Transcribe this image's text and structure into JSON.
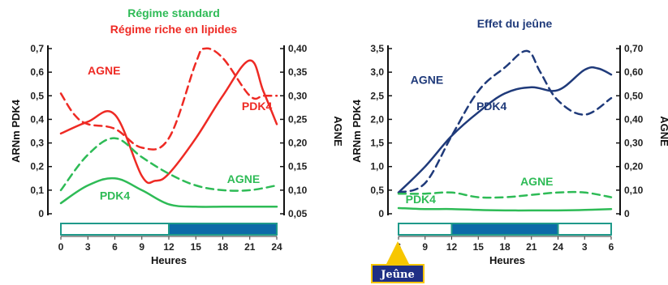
{
  "colors": {
    "green": "#2ebb56",
    "red": "#ee2a24",
    "navy": "#1f3a7a",
    "bar_teal": "#1f9a8a",
    "bar_blue": "#0d6aa8",
    "badge_fill": "#1f2f85",
    "badge_border": "#f7c600",
    "arrow": "#f7c600"
  },
  "chart_data": [
    {
      "type": "line",
      "title_lines": [
        {
          "text": "Régime standard",
          "color": "#2ebb56"
        },
        {
          "text": "Régime riche en lipides",
          "color": "#ee2a24"
        }
      ],
      "xlabel": "Heures",
      "ylabel_left": "ARNm PDK4",
      "ylabel_right": "AGNE",
      "x_ticks": [
        "0",
        "3",
        "6",
        "9",
        "12",
        "15",
        "18",
        "21",
        "24"
      ],
      "y_left_ticks": [
        "0",
        "0,1",
        "0,2",
        "0,3",
        "0,4",
        "0,5",
        "0,6",
        "0,7"
      ],
      "y_left_range": [
        0,
        0.7
      ],
      "y_right_ticks": [
        "0,05",
        "0,10",
        "0,15",
        "0,20",
        "0,25",
        "0,30",
        "0,35",
        "0,40"
      ],
      "y_right_range": [
        0.05,
        0.4
      ],
      "series": [
        {
          "label": "PDK4",
          "axis": "left",
          "style": "solid",
          "color": "#ee2a24",
          "x": [
            0,
            3,
            6,
            9,
            10.5,
            12,
            15,
            18,
            21,
            22.5,
            24
          ],
          "y": [
            0.34,
            0.39,
            0.42,
            0.16,
            0.14,
            0.17,
            0.32,
            0.5,
            0.65,
            0.52,
            0.38
          ]
        },
        {
          "label": "AGNE",
          "axis": "right",
          "style": "dashed",
          "color": "#ee2a24",
          "x": [
            0,
            1.5,
            3,
            6,
            9,
            12,
            15,
            16,
            18,
            21,
            22.5,
            24
          ],
          "y": [
            0.305,
            0.26,
            0.24,
            0.23,
            0.19,
            0.21,
            0.37,
            0.4,
            0.38,
            0.3,
            0.3,
            0.3
          ]
        },
        {
          "label": "AGNE",
          "axis": "right",
          "style": "dashed",
          "color": "#2ebb56",
          "x": [
            0,
            3,
            6,
            9,
            12,
            15,
            18,
            21,
            24
          ],
          "y": [
            0.1,
            0.175,
            0.21,
            0.17,
            0.135,
            0.11,
            0.1,
            0.1,
            0.11
          ]
        },
        {
          "label": "PDK4",
          "axis": "left",
          "style": "solid",
          "color": "#2ebb56",
          "x": [
            0,
            3,
            6,
            9,
            12,
            15,
            18,
            21,
            24
          ],
          "y": [
            0.045,
            0.12,
            0.15,
            0.1,
            0.04,
            0.03,
            0.03,
            0.03,
            0.03
          ]
        }
      ],
      "series_label_pos": [
        {
          "text": "AGNE",
          "color": "#ee2a24",
          "x": 4.8,
          "y": 0.59
        },
        {
          "text": "PDK4",
          "color": "#ee2a24",
          "x": 21.8,
          "y": 0.44
        },
        {
          "text": "AGNE",
          "color": "#2ebb56",
          "x": 20.3,
          "y": 0.13
        },
        {
          "text": "PDK4",
          "color": "#2ebb56",
          "x": 6,
          "y": 0.06
        }
      ],
      "time_bar": [
        {
          "from": 0,
          "to": 12,
          "fill": "white"
        },
        {
          "from": 12,
          "to": 24,
          "fill": "dark"
        }
      ]
    },
    {
      "type": "line",
      "title_lines": [
        {
          "text": "Effet du jeûne",
          "color": "#1f3a7a"
        }
      ],
      "xlabel": "Heures",
      "ylabel_left": "ARNm PDK4",
      "ylabel_right": "AGNE",
      "x_ticks": [
        "6",
        "9",
        "12",
        "15",
        "18",
        "21",
        "24",
        "3",
        "6"
      ],
      "y_left_ticks": [
        "0",
        "0,5",
        "1,0",
        "1,5",
        "2,0",
        "2,5",
        "3,0",
        "3,5"
      ],
      "y_left_range": [
        0,
        3.5
      ],
      "y_right_ticks": [
        "0",
        "0,10",
        "0,20",
        "0,30",
        "0,40",
        "0,50",
        "0,60",
        "0,70"
      ],
      "y_right_range": [
        0,
        0.7
      ],
      "series": [
        {
          "label": "PDK4",
          "axis": "left",
          "style": "solid",
          "color": "#1f3a7a",
          "x": [
            0,
            3,
            6,
            9,
            12,
            15,
            18,
            21,
            22.5,
            24
          ],
          "y": [
            0.45,
            1.0,
            1.65,
            2.15,
            2.55,
            2.68,
            2.62,
            3.05,
            3.08,
            2.95
          ]
        },
        {
          "label": "AGNE",
          "axis": "right",
          "style": "dashed",
          "color": "#1f3a7a",
          "x": [
            0,
            3,
            6,
            9,
            12,
            14.5,
            16,
            18,
            21,
            24
          ],
          "y": [
            0.09,
            0.13,
            0.33,
            0.52,
            0.62,
            0.69,
            0.6,
            0.48,
            0.42,
            0.49
          ]
        },
        {
          "label": "AGNE",
          "axis": "right",
          "style": "dashed",
          "color": "#2ebb56",
          "x": [
            0,
            3,
            6,
            9,
            12,
            15,
            18,
            21,
            24
          ],
          "y": [
            0.085,
            0.085,
            0.09,
            0.07,
            0.07,
            0.08,
            0.09,
            0.09,
            0.07
          ]
        },
        {
          "label": "PDK4",
          "axis": "left",
          "style": "solid",
          "color": "#2ebb56",
          "x": [
            0,
            3,
            6,
            9,
            12,
            15,
            18,
            21,
            24
          ],
          "y": [
            0.12,
            0.1,
            0.1,
            0.08,
            0.07,
            0.07,
            0.07,
            0.08,
            0.1
          ]
        }
      ],
      "series_label_pos": [
        {
          "text": "AGNE",
          "color": "#1f3a7a",
          "x": 3.2,
          "y": 2.75
        },
        {
          "text": "PDK4",
          "color": "#1f3a7a",
          "x": 10.5,
          "y": 2.2
        },
        {
          "text": "AGNE",
          "color": "#2ebb56",
          "x": 15.6,
          "y": 0.6
        },
        {
          "text": "PDK4",
          "color": "#2ebb56",
          "x": 2.5,
          "y": 0.22
        }
      ],
      "time_bar": [
        {
          "from": 0,
          "to": 6,
          "fill": "white"
        },
        {
          "from": 6,
          "to": 18,
          "fill": "dark"
        },
        {
          "from": 18,
          "to": 24,
          "fill": "white"
        }
      ],
      "marker_label": "Jeûne"
    }
  ]
}
